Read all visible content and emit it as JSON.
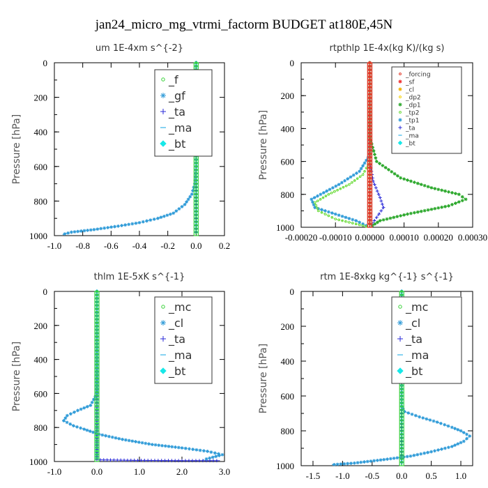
{
  "figure": {
    "title": "jan24_micro_mg_vtrmi_factorm  BUDGET at180E,45N",
    "ylabel": "Pressure [hPa]"
  },
  "colors": {
    "f": "#36d136",
    "gf": "#2f9bd8",
    "ta": "#2a2ad8",
    "ma": "#36b3e8",
    "bt": "#17e8e8",
    "forcing": "#e23b2b",
    "sf": "#ef2b2b",
    "cl_star": "#f0b000",
    "dp2": "#f4d000",
    "dp1": "#2ca82c",
    "tp2": "#6bdb3a",
    "tp1": "#2f9bd8",
    "mc": "#36d136",
    "cl": "#2f9bd8"
  },
  "chart_data": [
    {
      "type": "line",
      "title": "um   1E-4xm s^{-2}",
      "ylabel": "Pressure [hPa]",
      "xlim": [
        -1.0,
        0.2
      ],
      "ylim": [
        1000,
        0
      ],
      "xticks": [
        -1.0,
        -0.8,
        -0.6,
        -0.4,
        -0.2,
        0.0,
        0.2
      ],
      "xtick_labels": [
        "-1.0",
        "-0.8",
        "-0.6",
        "-0.4",
        "-0.2",
        "0.0",
        "0.2"
      ],
      "yticks": [
        0,
        200,
        400,
        600,
        800,
        1000
      ],
      "legend_font": 16,
      "legend_position": "top-right",
      "series": [
        {
          "name": "_f",
          "color_key": "f",
          "marker": "circle",
          "x": [
            0.0,
            0.0
          ],
          "y": [
            0,
            1000
          ]
        },
        {
          "name": "_gf",
          "color_key": "gf",
          "marker": "star",
          "x": [
            0.0,
            0.0,
            -0.01,
            -0.03,
            -0.08,
            -0.16,
            -0.27,
            -0.4,
            -0.55,
            -0.72,
            -0.88,
            -0.95
          ],
          "y": [
            0,
            600,
            700,
            760,
            820,
            870,
            900,
            925,
            945,
            965,
            980,
            995
          ]
        },
        {
          "name": "_ta",
          "color_key": "ta",
          "marker": "plus",
          "x": [
            0.0,
            0.0
          ],
          "y": [
            0,
            1000
          ]
        },
        {
          "name": "_ma",
          "color_key": "ma",
          "marker": "dash",
          "x": [
            0.0,
            0.0
          ],
          "y": [
            0,
            1000
          ]
        },
        {
          "name": "_bt",
          "color_key": "bt",
          "marker": "diamond",
          "x": [
            0.0,
            0.0
          ],
          "y": [
            0,
            1000
          ]
        }
      ]
    },
    {
      "type": "line",
      "title": "rtpthlp   1E-4x(kg K)/(kg s)",
      "ylabel": "Pressure [hPa]",
      "xlim": [
        -0.0002,
        0.0003
      ],
      "ylim": [
        1000,
        0
      ],
      "xticks": [
        -0.0002,
        -0.0001,
        0.0,
        0.0001,
        0.0002,
        0.0003
      ],
      "xtick_labels": [
        "-0.00020",
        "-0.00010",
        "0.00000",
        "0.00010",
        "0.00020",
        "0.00030"
      ],
      "yticks": [
        0,
        200,
        400,
        600,
        800,
        1000
      ],
      "legend_font": 9,
      "legend_position": "top-right",
      "series": [
        {
          "name": "_forcing",
          "color_key": "forcing",
          "marker": "circle",
          "x": [
            0.0,
            0.0
          ],
          "y": [
            0,
            1000
          ]
        },
        {
          "name": "_sf",
          "color_key": "sf",
          "marker": "star",
          "x": [
            0.0,
            0.0
          ],
          "y": [
            0,
            1000
          ]
        },
        {
          "name": "_cl",
          "color_key": "cl_star",
          "marker": "star",
          "x": [
            0.0,
            0.0
          ],
          "y": [
            0,
            1000
          ]
        },
        {
          "name": "_dp2",
          "color_key": "dp2",
          "marker": "circle",
          "x": [
            0.0,
            0.0
          ],
          "y": [
            0,
            1000
          ]
        },
        {
          "name": "_dp1",
          "color_key": "dp1",
          "marker": "star",
          "x": [
            0.0,
            0.0,
            2e-05,
            9e-05,
            0.00018,
            0.00026,
            0.00028,
            0.00023,
            0.00011,
            3e-05,
            0.0
          ],
          "y": [
            0,
            450,
            600,
            700,
            760,
            800,
            830,
            870,
            920,
            960,
            1000
          ]
        },
        {
          "name": "_tp2",
          "color_key": "tp2",
          "marker": "circle",
          "x": [
            0.0,
            0.0,
            -2e-05,
            -6e-05,
            -0.00012,
            -0.00016,
            -0.00015,
            -0.0001,
            -3e-05,
            0.0
          ],
          "y": [
            0,
            600,
            680,
            740,
            800,
            850,
            900,
            950,
            985,
            1000
          ]
        },
        {
          "name": "_tp1",
          "color_key": "tp1",
          "marker": "star",
          "x": [
            0.0,
            0.0,
            -3e-05,
            -9e-05,
            -0.00017,
            -0.00016,
            -0.0001,
            -4e-05,
            0.0
          ],
          "y": [
            0,
            560,
            660,
            740,
            830,
            880,
            920,
            960,
            1000
          ]
        },
        {
          "name": "_ta",
          "color_key": "ta",
          "marker": "plus",
          "x": [
            0.0,
            0.0,
            1e-05,
            3e-05,
            4e-05,
            2e-05,
            0.0
          ],
          "y": [
            0,
            600,
            720,
            820,
            880,
            940,
            1000
          ]
        },
        {
          "name": "_ma",
          "color_key": "ma",
          "marker": "dash",
          "x": [
            0.0,
            0.0
          ],
          "y": [
            0,
            1000
          ]
        },
        {
          "name": "_bt",
          "color_key": "bt",
          "marker": "diamond",
          "x": [
            0.0,
            0.0
          ],
          "y": [
            0,
            1000
          ]
        }
      ]
    },
    {
      "type": "line",
      "title": "thlm   1E-5xK s^{-1}",
      "ylabel": "Pressure [hPa]",
      "xlim": [
        -1.0,
        3.0
      ],
      "ylim": [
        1000,
        0
      ],
      "xticks": [
        -1.0,
        0.0,
        1.0,
        2.0,
        3.0
      ],
      "xtick_labels": [
        "-1.0",
        "0.0",
        "1.0",
        "2.0",
        "3.0"
      ],
      "yticks": [
        0,
        200,
        400,
        600,
        800,
        1000
      ],
      "legend_font": 16,
      "legend_position": "top-right",
      "series": [
        {
          "name": "_mc",
          "color_key": "mc",
          "marker": "circle",
          "x": [
            0.0,
            0.0
          ],
          "y": [
            0,
            1000
          ]
        },
        {
          "name": "_cl",
          "color_key": "cl",
          "marker": "star",
          "x": [
            0.0,
            0.0,
            -0.15,
            -0.45,
            -0.7,
            -0.78,
            -0.55,
            -0.3,
            0.05,
            0.6,
            1.3,
            2.0,
            2.6,
            2.95,
            2.5
          ],
          "y": [
            0,
            600,
            670,
            700,
            730,
            760,
            790,
            810,
            840,
            870,
            900,
            920,
            940,
            960,
            990
          ]
        },
        {
          "name": "_ta",
          "color_key": "ta",
          "marker": "plus",
          "x": [
            0.0,
            0.0,
            0.8,
            2.0,
            2.9
          ],
          "y": [
            0,
            990,
            993,
            995,
            995
          ]
        },
        {
          "name": "_ma",
          "color_key": "ma",
          "marker": "dash",
          "x": [
            0.0,
            0.0
          ],
          "y": [
            0,
            1000
          ]
        },
        {
          "name": "_bt",
          "color_key": "bt",
          "marker": "diamond",
          "x": [
            0.0,
            0.0
          ],
          "y": [
            0,
            1000
          ]
        }
      ]
    },
    {
      "type": "line",
      "title": "rtm   1E-8xkg kg^{-1} s^{-1}",
      "ylabel": "Pressure [hPa]",
      "xlim": [
        -1.7,
        1.2
      ],
      "ylim": [
        1000,
        0
      ],
      "xticks": [
        -1.5,
        -1.0,
        -0.5,
        0.0,
        0.5,
        1.0
      ],
      "xtick_labels": [
        "-1.5",
        "-1.0",
        "-0.5",
        "0.0",
        "0.5",
        "1.0"
      ],
      "yticks": [
        0,
        200,
        400,
        600,
        800,
        1000
      ],
      "legend_font": 16,
      "legend_position": "top-right",
      "series": [
        {
          "name": "_mc",
          "color_key": "mc",
          "marker": "circle",
          "x": [
            0.0,
            0.0
          ],
          "y": [
            0,
            1000
          ]
        },
        {
          "name": "_cl",
          "color_key": "cl",
          "marker": "star",
          "x": [
            0.0,
            0.0,
            0.05,
            0.3,
            0.6,
            0.85,
            1.0,
            1.15,
            1.05,
            0.85,
            0.5,
            0.15,
            -0.3,
            -0.8,
            -1.2
          ],
          "y": [
            0,
            660,
            690,
            720,
            750,
            780,
            800,
            830,
            860,
            890,
            920,
            945,
            965,
            985,
            995
          ]
        },
        {
          "name": "_ta",
          "color_key": "ta",
          "marker": "plus",
          "x": [
            0.0,
            0.0
          ],
          "y": [
            0,
            1000
          ]
        },
        {
          "name": "_ma",
          "color_key": "ma",
          "marker": "dash",
          "x": [
            0.0,
            0.0
          ],
          "y": [
            0,
            1000
          ]
        },
        {
          "name": "_bt",
          "color_key": "bt",
          "marker": "diamond",
          "x": [
            0.0,
            0.0
          ],
          "y": [
            0,
            1000
          ]
        }
      ]
    }
  ]
}
